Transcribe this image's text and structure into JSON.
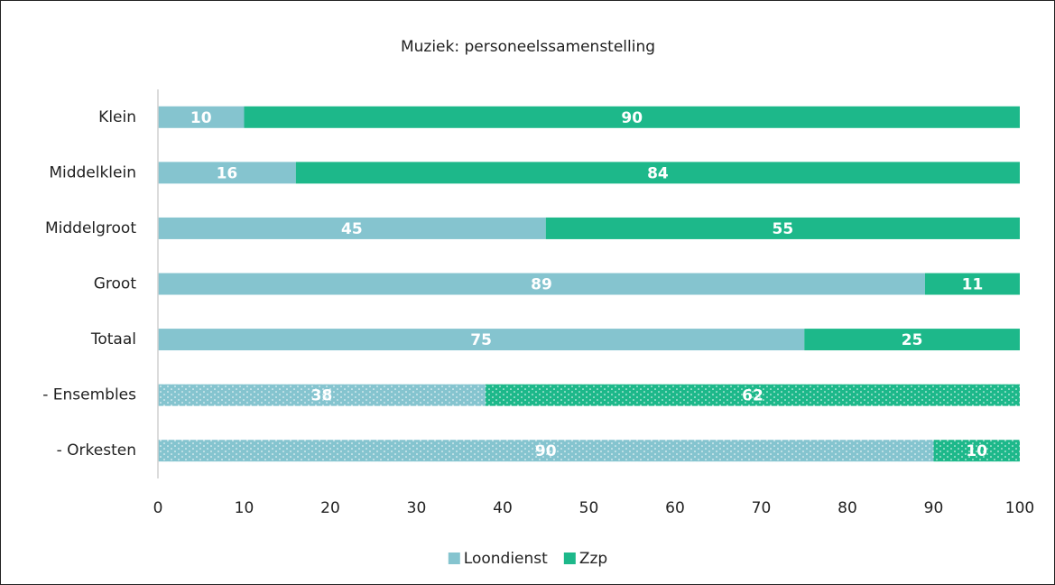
{
  "chart_data": {
    "type": "stacked-bar-horizontal",
    "title": "Muziek: personeelssamenstelling",
    "categories": [
      "Klein",
      "Middelklein",
      "Middelgroot",
      "Groot",
      "Totaal",
      "- Ensembles",
      "- Orkesten"
    ],
    "dotted": [
      false,
      false,
      false,
      false,
      false,
      true,
      true
    ],
    "series": [
      {
        "name": "Loondienst",
        "color": "#85c4cf",
        "values": [
          10,
          16,
          45,
          89,
          75,
          38,
          90
        ]
      },
      {
        "name": "Zzp",
        "color": "#1db88a",
        "values": [
          90,
          84,
          55,
          11,
          25,
          62,
          10
        ]
      }
    ],
    "xlim": [
      0,
      100
    ],
    "xticks": [
      0,
      10,
      20,
      30,
      40,
      50,
      60,
      70,
      80,
      90,
      100
    ],
    "legend": "bottom"
  }
}
